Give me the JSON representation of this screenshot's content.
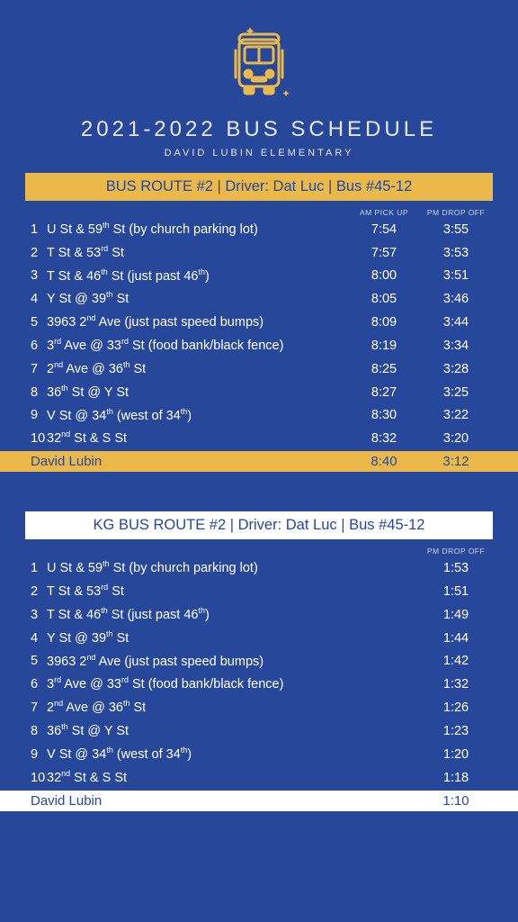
{
  "colors": {
    "background": "#27489a",
    "gold": "#eab94a",
    "white": "#ffffff",
    "text": "#ffffff",
    "header_text": "#e8e8e8",
    "col_header_text": "#cfd6e8",
    "banner_text": "#27489a"
  },
  "typography": {
    "title_fontsize": 24,
    "title_letterspacing": 4,
    "subtitle_fontsize": 11,
    "subtitle_letterspacing": 3,
    "banner_fontsize": 16.5,
    "row_fontsize": 14.5,
    "colheader_fontsize": 8.5
  },
  "title": "2021-2022 BUS SCHEDULE",
  "subtitle": "DAVID LUBIN ELEMENTARY",
  "route1": {
    "banner": "BUS ROUTE #2  |  Driver: Dat Luc  |  Bus #45-12",
    "banner_style": "gold",
    "col_am": "AM PICK UP",
    "col_pm": "PM DROP OFF",
    "stops": [
      {
        "n": "1",
        "loc_html": "U St & 59<sup>th</sup> St (by church parking lot)",
        "am": "7:54",
        "pm": "3:55"
      },
      {
        "n": "2",
        "loc_html": "T St & 53<sup>rd</sup> St",
        "am": "7:57",
        "pm": "3:53"
      },
      {
        "n": "3",
        "loc_html": "T St & 46<sup>th</sup> St (just past 46<sup>th</sup>)",
        "am": "8:00",
        "pm": "3:51"
      },
      {
        "n": "4",
        "loc_html": "Y St @ 39<sup>th</sup> St",
        "am": "8:05",
        "pm": "3:46"
      },
      {
        "n": "5",
        "loc_html": "3963 2<sup>nd</sup> Ave (just past speed bumps)",
        "am": "8:09",
        "pm": "3:44"
      },
      {
        "n": "6",
        "loc_html": "3<sup>rd</sup> Ave @ 33<sup>rd</sup> St (food bank/black fence)",
        "am": "8:19",
        "pm": "3:34"
      },
      {
        "n": "7",
        "loc_html": "2<sup>nd</sup> Ave @ 36<sup>th</sup> St",
        "am": "8:25",
        "pm": "3:28"
      },
      {
        "n": "8",
        "loc_html": "36<sup>th</sup> St @ Y St",
        "am": "8:27",
        "pm": "3:25"
      },
      {
        "n": "9",
        "loc_html": "V St @ 34<sup>th</sup> (west of 34<sup>th</sup>)",
        "am": "8:30",
        "pm": "3:22"
      },
      {
        "n": "10",
        "loc_html": "32<sup>nd</sup> St & S St",
        "am": "8:32",
        "pm": "3:20"
      }
    ],
    "final": {
      "loc": "David Lubin",
      "am": "8:40",
      "pm": "3:12"
    }
  },
  "route2": {
    "banner": "KG BUS ROUTE #2  |  Driver: Dat Luc  |  Bus #45-12",
    "banner_style": "white",
    "col_pm": "PM DROP OFF",
    "stops": [
      {
        "n": "1",
        "loc_html": "U St & 59<sup>th</sup> St (by church parking lot)",
        "pm": "1:53"
      },
      {
        "n": "2",
        "loc_html": "T St & 53<sup>rd</sup> St",
        "pm": "1:51"
      },
      {
        "n": "3",
        "loc_html": "T St & 46<sup>th</sup> St (just past 46<sup>th</sup>)",
        "pm": "1:49"
      },
      {
        "n": "4",
        "loc_html": "Y St @ 39<sup>th</sup> St",
        "pm": "1:44"
      },
      {
        "n": "5",
        "loc_html": "3963 2<sup>nd</sup> Ave (just past speed bumps)",
        "pm": "1:42"
      },
      {
        "n": "6",
        "loc_html": "3<sup>rd</sup> Ave @ 33<sup>rd</sup> St (food bank/black fence)",
        "pm": "1:32"
      },
      {
        "n": "7",
        "loc_html": "2<sup>nd</sup> Ave @ 36<sup>th</sup> St",
        "pm": "1:26"
      },
      {
        "n": "8",
        "loc_html": "36<sup>th</sup> St @ Y St",
        "pm": "1:23"
      },
      {
        "n": "9",
        "loc_html": "V St @ 34<sup>th</sup> (west of 34<sup>th</sup>)",
        "pm": "1:20"
      },
      {
        "n": "10",
        "loc_html": "32<sup>nd</sup> St & S St",
        "pm": "1:18"
      }
    ],
    "final": {
      "loc": "David Lubin",
      "pm": "1:10"
    }
  }
}
